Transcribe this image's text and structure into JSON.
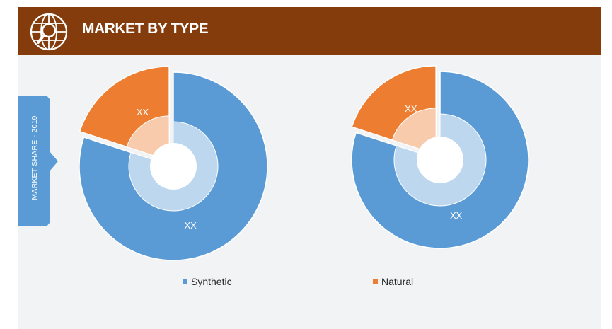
{
  "header": {
    "title": "MARKET BY TYPE",
    "icon": "globe-search-icon"
  },
  "side_label": "MARKET SHARE - 2019",
  "colors": {
    "synthetic": "#5b9bd5",
    "synthetic_inner": "#bdd7ee",
    "natural": "#ed7d31",
    "natural_inner": "#f8cbad",
    "header": "#843c0c"
  },
  "chart_data": [
    {
      "type": "pie",
      "title": "",
      "categories": [
        "Synthetic",
        "Natural"
      ],
      "values": [
        80,
        20
      ],
      "data_labels": [
        "XX",
        "XX"
      ]
    },
    {
      "type": "pie",
      "title": "",
      "categories": [
        "Synthetic",
        "Natural"
      ],
      "values": [
        80,
        20
      ],
      "data_labels": [
        "XX",
        "XX"
      ]
    }
  ],
  "legend": [
    {
      "label": "Synthetic",
      "color": "#5b9bd5"
    },
    {
      "label": "Natural",
      "color": "#ed7d31"
    }
  ]
}
